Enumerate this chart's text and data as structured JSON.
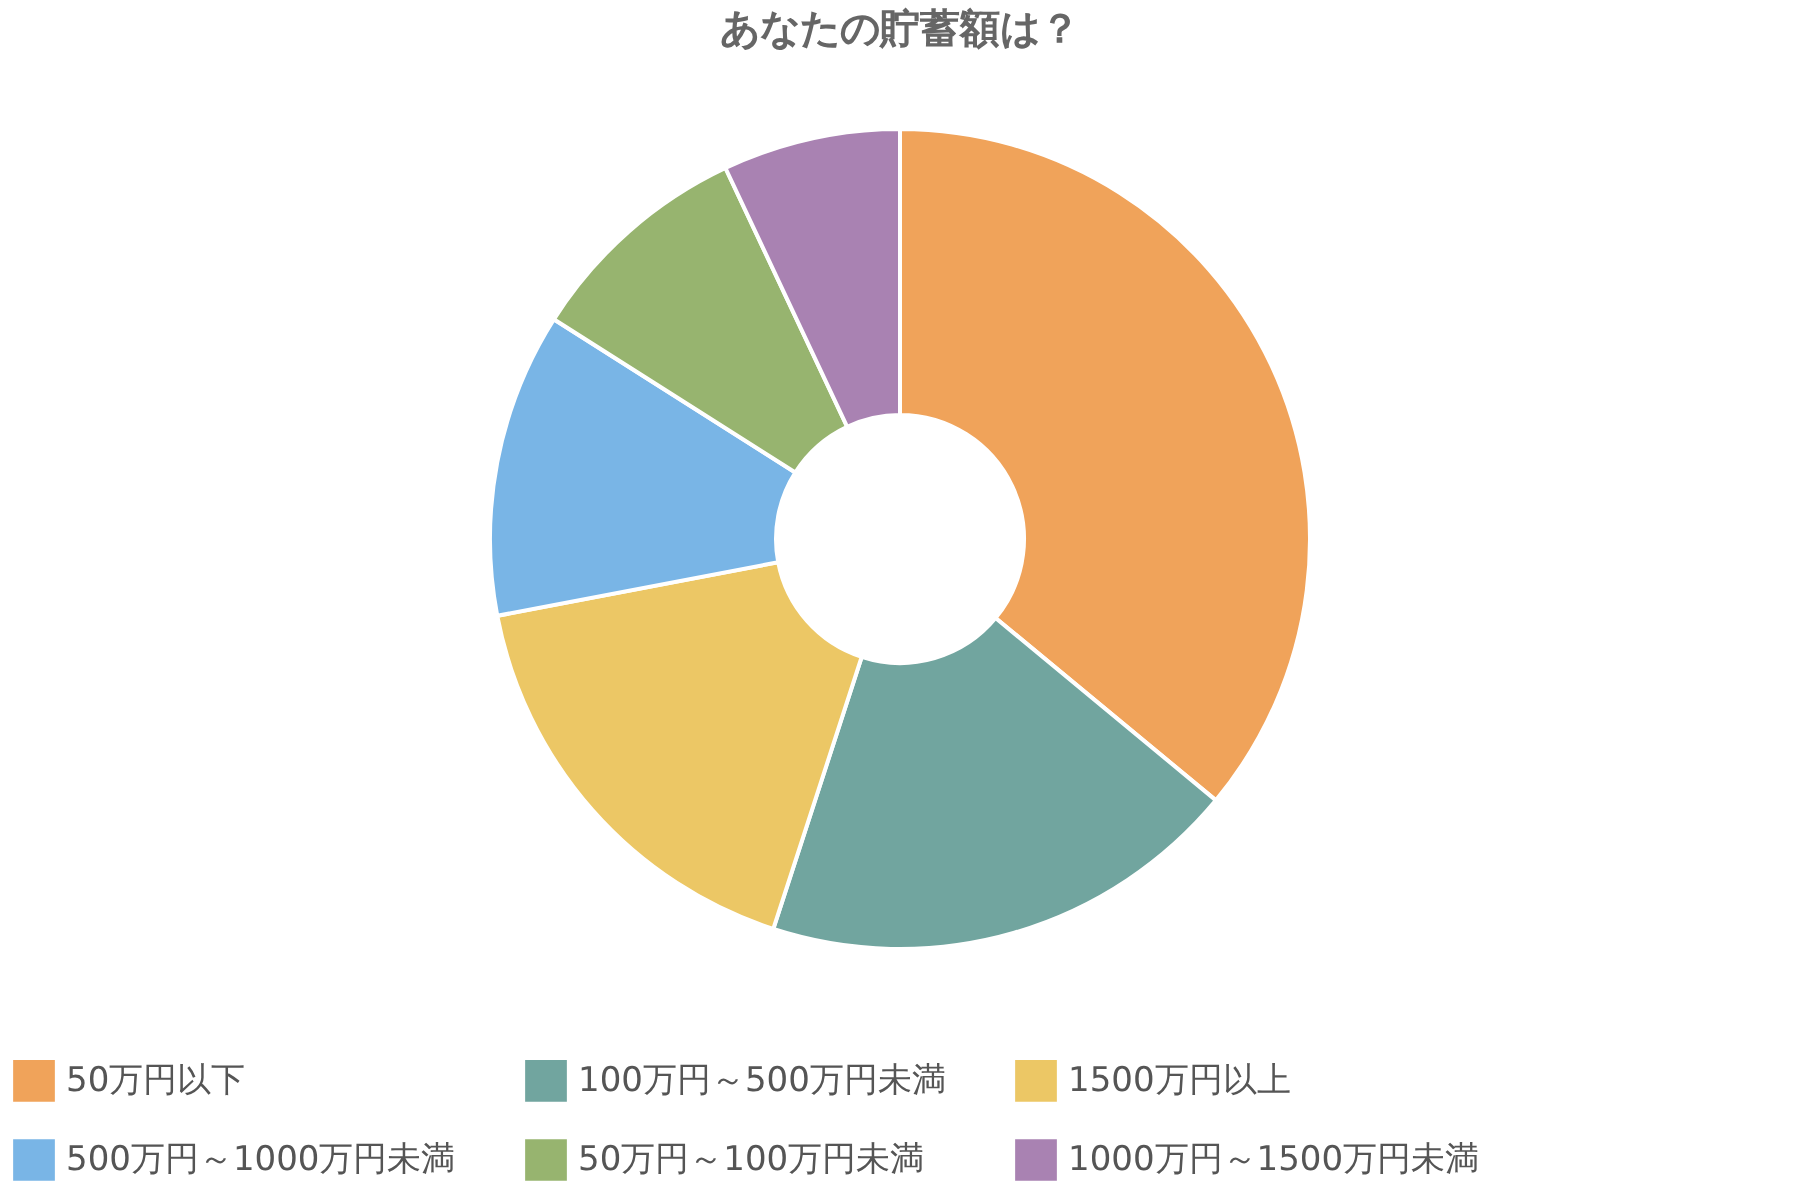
{
  "chart_data": {
    "type": "donut",
    "title": "あなたの貯蓄額は？",
    "categories": [
      "50万円以下",
      "100万円～500万円未満",
      "1500万円以上",
      "500万円～1000万円未満",
      "50万円～100万円未満",
      "1000万円～1500万円未満"
    ],
    "values": [
      36,
      19,
      17,
      12,
      9,
      7
    ],
    "colors": [
      "#f0a35a",
      "#71a59f",
      "#ecc765",
      "#79b5e6",
      "#97b46f",
      "#a982b2"
    ],
    "legend": "bottom"
  }
}
